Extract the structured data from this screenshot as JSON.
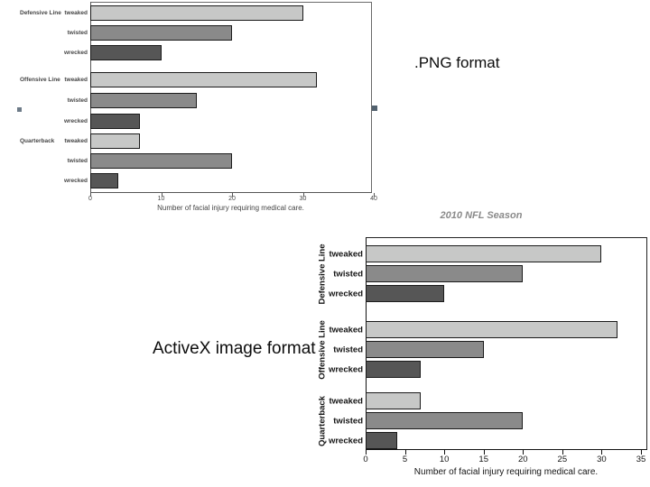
{
  "labels": {
    "png": ".PNG format",
    "activex": "ActiveX image format"
  },
  "decorations": {
    "selection_handle_color": "#5e6e7c",
    "selection_handle_count": 2
  },
  "chart_data": [
    {
      "id": "png-chart",
      "type": "bar",
      "orientation": "horizontal",
      "title": "",
      "xlabel": "Number of facial injury requiring medical care.",
      "xlim": [
        0,
        40
      ],
      "xticks": [
        0,
        10,
        20,
        30,
        40
      ],
      "grid": false,
      "legend": "none",
      "bar_colors": {
        "tweaked": "#c7c8c7",
        "twisted": "#8a8a8a",
        "wrecked": "#565656"
      },
      "groups": [
        {
          "name": "Defensive Line",
          "bars": [
            {
              "label": "tweaked",
              "value": 30
            },
            {
              "label": "twisted",
              "value": 20
            },
            {
              "label": "wrecked",
              "value": 10
            }
          ]
        },
        {
          "name": "Offensive Line",
          "bars": [
            {
              "label": "tweaked",
              "value": 32
            },
            {
              "label": "twisted",
              "value": 15
            },
            {
              "label": "wrecked",
              "value": 7
            }
          ]
        },
        {
          "name": "Quarterback",
          "bars": [
            {
              "label": "tweaked",
              "value": 7
            },
            {
              "label": "twisted",
              "value": 20
            },
            {
              "label": "wrecked",
              "value": 4
            }
          ]
        }
      ]
    },
    {
      "id": "activex-chart",
      "type": "bar",
      "orientation": "horizontal",
      "title": "2010 NFL Season",
      "title_color": "#8a8a8a",
      "xlabel": "Number of facial injury requiring medical care.",
      "xlim": [
        0,
        35
      ],
      "xticks": [
        0,
        5,
        10,
        15,
        20,
        25,
        30,
        35
      ],
      "grid": false,
      "legend": "none",
      "bar_colors": {
        "tweaked": "#c7c8c7",
        "twisted": "#8a8a8a",
        "wrecked": "#565656"
      },
      "groups": [
        {
          "name": "Defensive Line",
          "bars": [
            {
              "label": "tweaked",
              "value": 30
            },
            {
              "label": "twisted",
              "value": 20
            },
            {
              "label": "wrecked",
              "value": 10
            }
          ]
        },
        {
          "name": "Offensive Line",
          "bars": [
            {
              "label": "tweaked",
              "value": 32
            },
            {
              "label": "twisted",
              "value": 15
            },
            {
              "label": "wrecked",
              "value": 7
            }
          ]
        },
        {
          "name": "Quarterback",
          "bars": [
            {
              "label": "tweaked",
              "value": 7
            },
            {
              "label": "twisted",
              "value": 20
            },
            {
              "label": "wrecked",
              "value": 4
            }
          ]
        }
      ]
    }
  ]
}
